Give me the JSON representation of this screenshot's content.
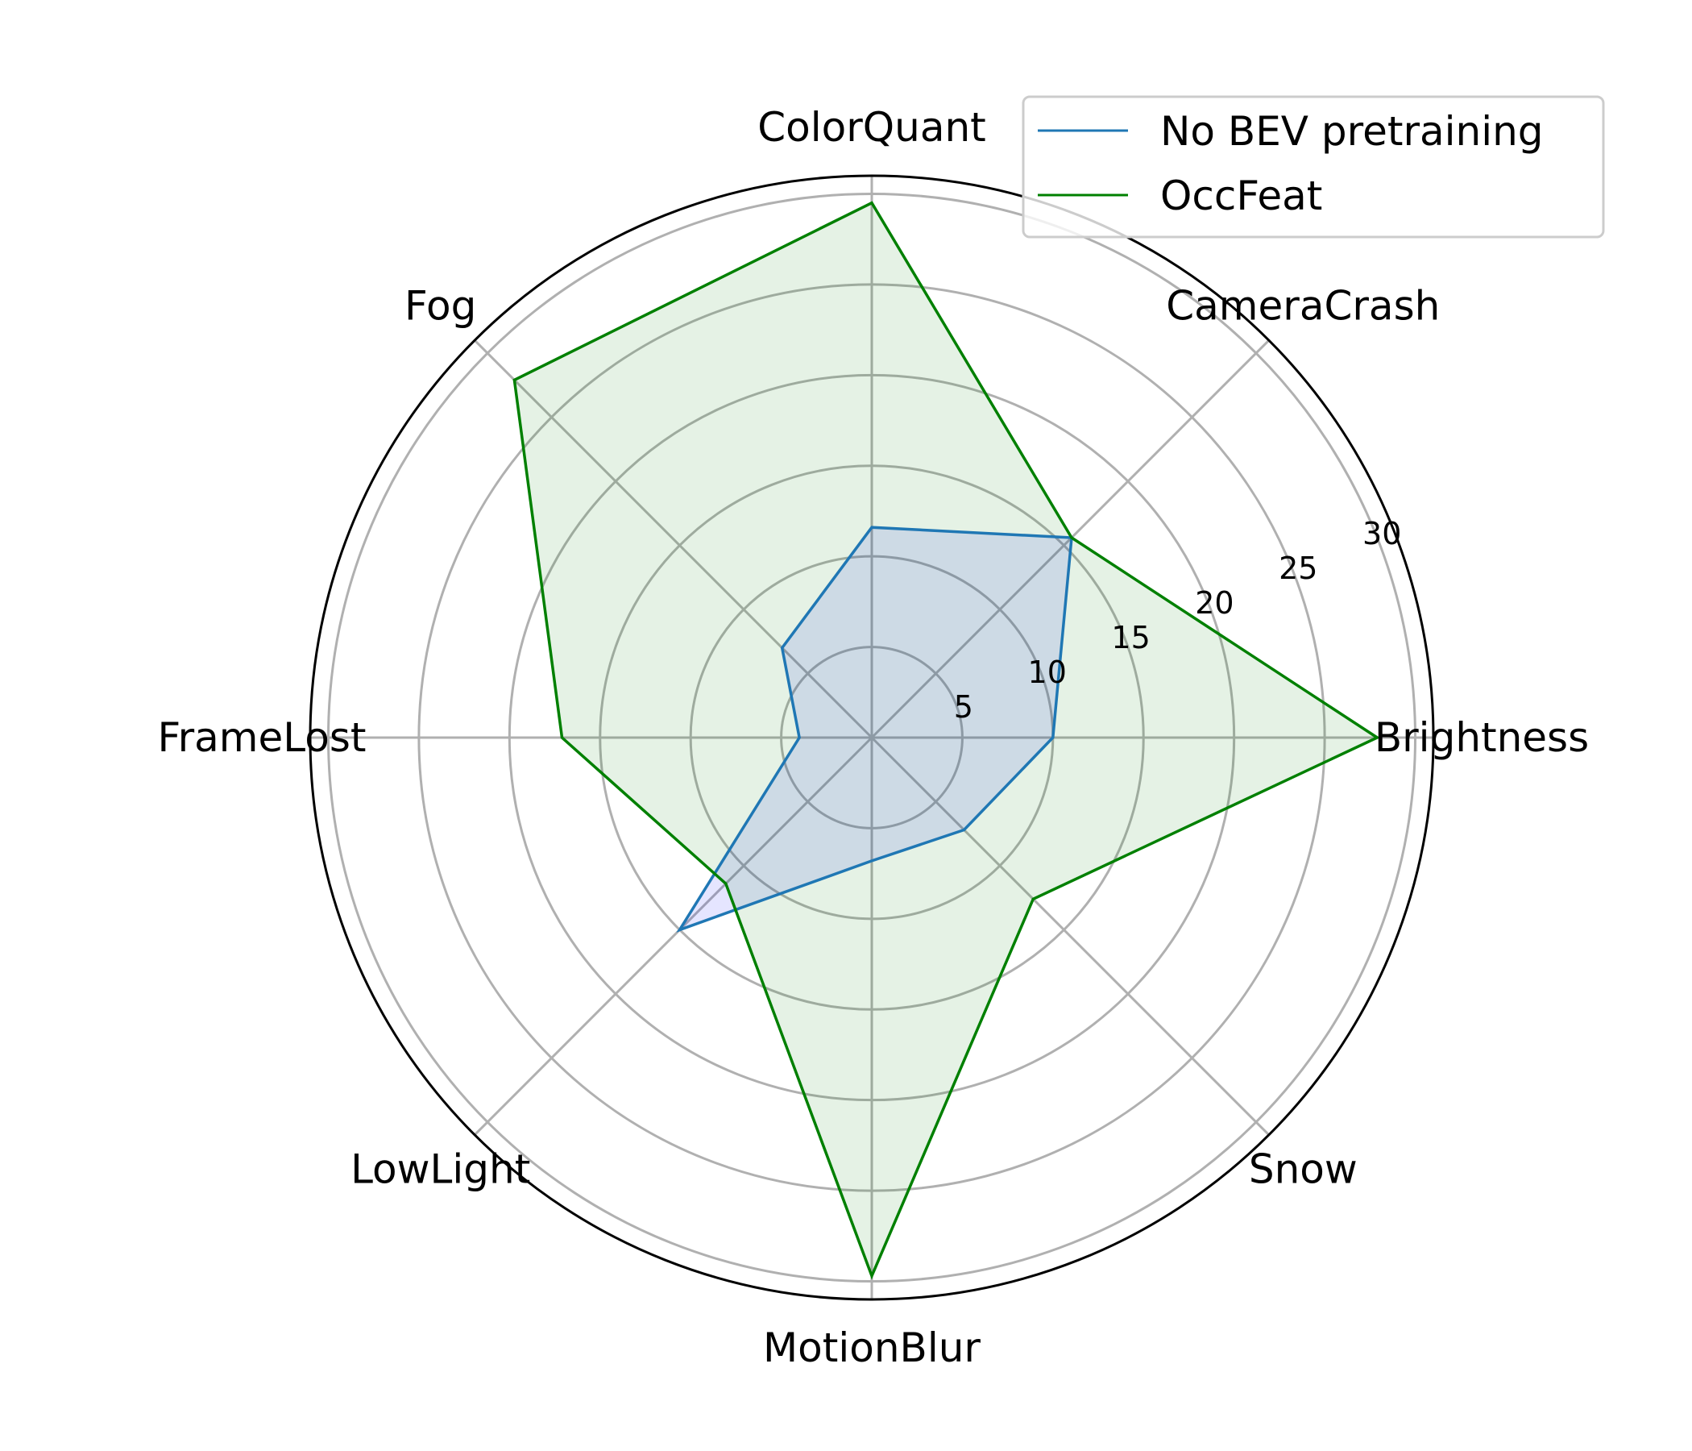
{
  "chart_data": {
    "type": "radar",
    "categories": [
      "Brightness",
      "CameraCrash",
      "ColorQuant",
      "Fog",
      "FrameLost",
      "LowLight",
      "MotionBlur",
      "Snow"
    ],
    "rlim": [
      0,
      31
    ],
    "rticks": [
      5,
      10,
      15,
      20,
      25,
      30
    ],
    "rtick_labels": [
      "5",
      "10",
      "15",
      "20",
      "25",
      "30"
    ],
    "grid": true,
    "legend_position": "top-right",
    "series": [
      {
        "name": "No BEV pretraining",
        "values": [
          10.0,
          15.6,
          11.6,
          7.0,
          4.0,
          15.0,
          6.8,
          7.2
        ],
        "color": "#1f77b4",
        "fill": "#0000ff",
        "fill_opacity": 0.1
      },
      {
        "name": "OccFeat",
        "values": [
          27.9,
          15.6,
          29.5,
          27.9,
          17.1,
          11.4,
          29.7,
          12.6
        ],
        "color": "#008000",
        "fill": "#008000",
        "fill_opacity": 0.1
      }
    ]
  }
}
